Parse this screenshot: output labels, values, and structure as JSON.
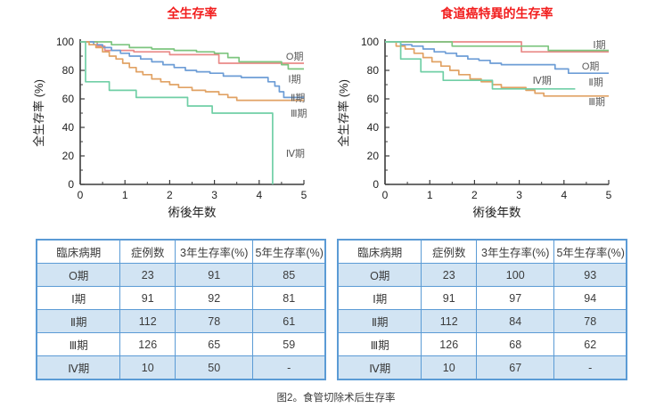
{
  "caption": "图2。食管切除术后生存率",
  "chart_data": [
    {
      "type": "line",
      "title": "全生存率",
      "title_color": "#f21d1d",
      "xlabel": "術後年数",
      "ylabel": "全生存率 (%)",
      "xlim": [
        0,
        5
      ],
      "ylim": [
        0,
        100
      ],
      "xticks": [
        0,
        1,
        2,
        3,
        4,
        5
      ],
      "yticks": [
        0,
        20,
        40,
        60,
        80,
        100
      ],
      "x_minor_step": 0.5,
      "y_minor_step": 10,
      "grid": false,
      "legend_position": "right-inline-labels",
      "series": [
        {
          "name": "O期",
          "color": "#e98a88",
          "points": [
            [
              0,
              100
            ],
            [
              0.38,
              100
            ],
            [
              0.38,
              97
            ],
            [
              0.55,
              97
            ],
            [
              0.55,
              94
            ],
            [
              1.2,
              94
            ],
            [
              1.2,
              93
            ],
            [
              2.0,
              93
            ],
            [
              2.0,
              91
            ],
            [
              3.1,
              91
            ],
            [
              3.1,
              85
            ],
            [
              5,
              85
            ]
          ]
        },
        {
          "name": "Ⅰ期",
          "color": "#7dc57f",
          "points": [
            [
              0,
              100
            ],
            [
              0.7,
              100
            ],
            [
              0.7,
              98
            ],
            [
              1.1,
              98
            ],
            [
              1.1,
              96
            ],
            [
              1.6,
              96
            ],
            [
              1.6,
              95
            ],
            [
              2.1,
              95
            ],
            [
              2.1,
              94
            ],
            [
              2.6,
              94
            ],
            [
              2.6,
              93
            ],
            [
              3.0,
              93
            ],
            [
              3.0,
              92
            ],
            [
              3.3,
              92
            ],
            [
              3.3,
              89
            ],
            [
              3.55,
              89
            ],
            [
              3.55,
              86
            ],
            [
              4.5,
              86
            ],
            [
              4.5,
              84
            ],
            [
              4.65,
              84
            ],
            [
              4.65,
              81
            ],
            [
              5,
              81
            ]
          ]
        },
        {
          "name": "Ⅱ期",
          "color": "#6d9dd6",
          "points": [
            [
              0,
              100
            ],
            [
              0.3,
              100
            ],
            [
              0.3,
              98
            ],
            [
              0.5,
              98
            ],
            [
              0.5,
              96
            ],
            [
              0.7,
              96
            ],
            [
              0.7,
              94
            ],
            [
              0.9,
              94
            ],
            [
              0.9,
              92
            ],
            [
              1.1,
              92
            ],
            [
              1.1,
              90
            ],
            [
              1.35,
              90
            ],
            [
              1.35,
              88
            ],
            [
              1.6,
              88
            ],
            [
              1.6,
              86
            ],
            [
              1.85,
              86
            ],
            [
              1.85,
              84
            ],
            [
              2.1,
              84
            ],
            [
              2.1,
              82
            ],
            [
              2.35,
              82
            ],
            [
              2.35,
              80
            ],
            [
              2.6,
              80
            ],
            [
              2.6,
              79
            ],
            [
              2.9,
              79
            ],
            [
              2.9,
              78
            ],
            [
              3.2,
              78
            ],
            [
              3.2,
              76
            ],
            [
              3.6,
              76
            ],
            [
              3.6,
              75
            ],
            [
              4.2,
              75
            ],
            [
              4.2,
              72
            ],
            [
              4.35,
              72
            ],
            [
              4.35,
              69
            ],
            [
              4.45,
              69
            ],
            [
              4.45,
              65
            ],
            [
              4.55,
              65
            ],
            [
              4.55,
              61
            ],
            [
              5,
              61
            ]
          ]
        },
        {
          "name": "Ⅲ期",
          "color": "#e1a264",
          "points": [
            [
              0,
              100
            ],
            [
              0.2,
              100
            ],
            [
              0.2,
              98
            ],
            [
              0.35,
              98
            ],
            [
              0.35,
              96
            ],
            [
              0.5,
              96
            ],
            [
              0.5,
              93
            ],
            [
              0.65,
              93
            ],
            [
              0.65,
              90
            ],
            [
              0.8,
              90
            ],
            [
              0.8,
              88
            ],
            [
              0.95,
              88
            ],
            [
              0.95,
              85
            ],
            [
              1.1,
              85
            ],
            [
              1.1,
              82
            ],
            [
              1.25,
              82
            ],
            [
              1.25,
              79
            ],
            [
              1.4,
              79
            ],
            [
              1.4,
              77
            ],
            [
              1.6,
              77
            ],
            [
              1.6,
              74
            ],
            [
              1.8,
              74
            ],
            [
              1.8,
              72
            ],
            [
              2.0,
              72
            ],
            [
              2.0,
              70
            ],
            [
              2.2,
              70
            ],
            [
              2.2,
              68
            ],
            [
              2.5,
              68
            ],
            [
              2.5,
              66
            ],
            [
              2.8,
              66
            ],
            [
              2.8,
              65
            ],
            [
              3.1,
              65
            ],
            [
              3.1,
              63
            ],
            [
              3.3,
              63
            ],
            [
              3.3,
              61
            ],
            [
              3.5,
              61
            ],
            [
              3.5,
              59
            ],
            [
              5,
              59
            ]
          ]
        },
        {
          "name": "Ⅳ期",
          "color": "#70cfa6",
          "points": [
            [
              0,
              100
            ],
            [
              0.12,
              100
            ],
            [
              0.12,
              72
            ],
            [
              0.65,
              72
            ],
            [
              0.65,
              66
            ],
            [
              1.25,
              66
            ],
            [
              1.25,
              61
            ],
            [
              2.4,
              61
            ],
            [
              2.4,
              55
            ],
            [
              2.95,
              55
            ],
            [
              2.95,
              50
            ],
            [
              4.3,
              50
            ],
            [
              4.3,
              0
            ]
          ]
        }
      ],
      "labels": [
        {
          "text": "O期",
          "x": 4.6,
          "y": 90
        },
        {
          "text": "Ⅰ期",
          "x": 4.65,
          "y": 74
        },
        {
          "text": "Ⅱ期",
          "x": 4.7,
          "y": 61
        },
        {
          "text": "Ⅲ期",
          "x": 4.7,
          "y": 50
        },
        {
          "text": "Ⅳ期",
          "x": 4.6,
          "y": 22
        }
      ]
    },
    {
      "type": "line",
      "title": "食道癌特異的生存率",
      "title_color": "#f21d1d",
      "xlabel": "術後年数",
      "ylabel": "全生存率 (%)",
      "xlim": [
        0,
        5
      ],
      "ylim": [
        0,
        100
      ],
      "xticks": [
        0,
        1,
        2,
        3,
        4,
        5
      ],
      "yticks": [
        0,
        20,
        40,
        60,
        80,
        100
      ],
      "x_minor_step": 0.5,
      "y_minor_step": 10,
      "grid": false,
      "legend_position": "right-inline-labels",
      "series": [
        {
          "name": "O期",
          "color": "#e98a88",
          "points": [
            [
              0,
              100
            ],
            [
              3.05,
              100
            ],
            [
              3.05,
              93
            ],
            [
              5,
              93
            ]
          ]
        },
        {
          "name": "Ⅰ期",
          "color": "#7dc57f",
          "points": [
            [
              0,
              100
            ],
            [
              1.5,
              100
            ],
            [
              1.5,
              97
            ],
            [
              3.65,
              97
            ],
            [
              3.65,
              94
            ],
            [
              5,
              94
            ]
          ]
        },
        {
          "name": "Ⅱ期",
          "color": "#6d9dd6",
          "points": [
            [
              0,
              100
            ],
            [
              0.35,
              100
            ],
            [
              0.35,
              98
            ],
            [
              0.6,
              98
            ],
            [
              0.6,
              97
            ],
            [
              0.85,
              97
            ],
            [
              0.85,
              95
            ],
            [
              1.1,
              95
            ],
            [
              1.1,
              93
            ],
            [
              1.35,
              93
            ],
            [
              1.35,
              92
            ],
            [
              1.6,
              92
            ],
            [
              1.6,
              90
            ],
            [
              1.85,
              90
            ],
            [
              1.85,
              88
            ],
            [
              2.1,
              88
            ],
            [
              2.1,
              87
            ],
            [
              2.35,
              87
            ],
            [
              2.35,
              85
            ],
            [
              2.6,
              85
            ],
            [
              2.6,
              84
            ],
            [
              3.8,
              84
            ],
            [
              3.8,
              81
            ],
            [
              4.1,
              81
            ],
            [
              4.1,
              78
            ],
            [
              5,
              78
            ]
          ]
        },
        {
          "name": "Ⅲ期",
          "color": "#e1a264",
          "points": [
            [
              0,
              100
            ],
            [
              0.25,
              100
            ],
            [
              0.25,
              97
            ],
            [
              0.45,
              97
            ],
            [
              0.45,
              95
            ],
            [
              0.65,
              95
            ],
            [
              0.65,
              92
            ],
            [
              0.85,
              92
            ],
            [
              0.85,
              89
            ],
            [
              1.05,
              89
            ],
            [
              1.05,
              86
            ],
            [
              1.25,
              86
            ],
            [
              1.25,
              83
            ],
            [
              1.45,
              83
            ],
            [
              1.45,
              80
            ],
            [
              1.65,
              80
            ],
            [
              1.65,
              77
            ],
            [
              1.9,
              77
            ],
            [
              1.9,
              74
            ],
            [
              2.15,
              74
            ],
            [
              2.15,
              72
            ],
            [
              2.4,
              72
            ],
            [
              2.4,
              70
            ],
            [
              2.6,
              70
            ],
            [
              2.6,
              68
            ],
            [
              3.15,
              68
            ],
            [
              3.15,
              66
            ],
            [
              3.35,
              66
            ],
            [
              3.35,
              64
            ],
            [
              3.55,
              64
            ],
            [
              3.55,
              62
            ],
            [
              5,
              62
            ]
          ]
        },
        {
          "name": "Ⅳ期",
          "color": "#70cfa6",
          "points": [
            [
              0,
              100
            ],
            [
              0.35,
              100
            ],
            [
              0.35,
              88
            ],
            [
              0.8,
              88
            ],
            [
              0.8,
              79
            ],
            [
              1.3,
              79
            ],
            [
              1.3,
              73
            ],
            [
              2.4,
              73
            ],
            [
              2.4,
              67
            ],
            [
              4.25,
              67
            ]
          ]
        }
      ],
      "labels": [
        {
          "text": "Ⅰ期",
          "x": 4.65,
          "y": 98
        },
        {
          "text": "O期",
          "x": 4.4,
          "y": 83
        },
        {
          "text": "Ⅱ期",
          "x": 4.55,
          "y": 72
        },
        {
          "text": "Ⅳ期",
          "x": 3.3,
          "y": 73
        },
        {
          "text": "Ⅲ期",
          "x": 4.55,
          "y": 58
        }
      ]
    },
    {
      "type": "table",
      "headers": [
        "臨床病期",
        "症例数",
        "3年生存率(%)",
        "5年生存率(%)"
      ],
      "rows": [
        [
          "O期",
          "23",
          "91",
          "85"
        ],
        [
          "Ⅰ期",
          "91",
          "92",
          "81"
        ],
        [
          "Ⅱ期",
          "112",
          "78",
          "61"
        ],
        [
          "Ⅲ期",
          "126",
          "65",
          "59"
        ],
        [
          "Ⅳ期",
          "10",
          "50",
          "-"
        ]
      ]
    },
    {
      "type": "table",
      "headers": [
        "臨床病期",
        "症例数",
        "3年生存率(%)",
        "5年生存率(%)"
      ],
      "rows": [
        [
          "O期",
          "23",
          "100",
          "93"
        ],
        [
          "Ⅰ期",
          "91",
          "97",
          "94"
        ],
        [
          "Ⅱ期",
          "112",
          "84",
          "78"
        ],
        [
          "Ⅲ期",
          "126",
          "68",
          "62"
        ],
        [
          "Ⅳ期",
          "10",
          "67",
          "-"
        ]
      ]
    }
  ],
  "style": {
    "axis_color": "#3c3c3c",
    "tick_label_color": "#222222",
    "stage_label_color": "#5a5a5a",
    "table_border_color": "#5b9bd5",
    "table_alt_row_color": "#d2e4f3"
  }
}
